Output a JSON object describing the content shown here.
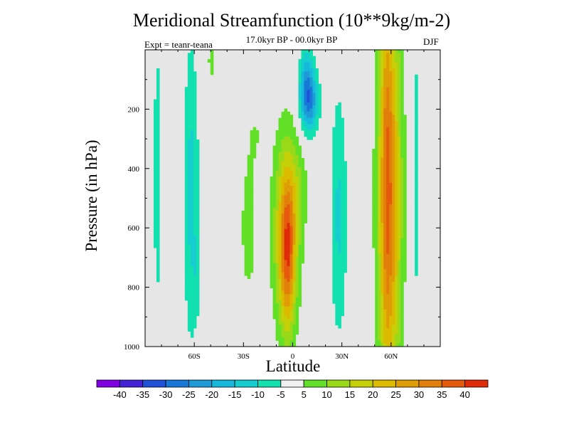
{
  "chart_data": {
    "type": "heatmap",
    "title": "Meridional Streamfunction (10**9kg/m-2)",
    "subtitle": "17.0kyr BP - 00.0kyr BP",
    "left_label": "Expt = teanr-teana",
    "right_label": "DJF",
    "xlabel": "Latitude",
    "ylabel": "Pressure (in hPa)",
    "xlim": [
      -90,
      90
    ],
    "ylim": [
      0,
      1000
    ],
    "y_reversed": true,
    "x_ticks": [
      {
        "value": -60,
        "label": "60S"
      },
      {
        "value": -30,
        "label": "30S"
      },
      {
        "value": 0,
        "label": "0"
      },
      {
        "value": 30,
        "label": "30N"
      },
      {
        "value": 60,
        "label": "60N"
      }
    ],
    "y_ticks": [
      {
        "value": 200,
        "label": "200"
      },
      {
        "value": 400,
        "label": "400"
      },
      {
        "value": 600,
        "label": "600"
      },
      {
        "value": 800,
        "label": "800"
      },
      {
        "value": 1000,
        "label": "1000"
      }
    ],
    "background": "#e6e6e6",
    "colorbar": {
      "levels": [
        "-40",
        "-35",
        "-30",
        "-25",
        "-20",
        "-15",
        "-10",
        "-5",
        "5",
        "10",
        "15",
        "20",
        "25",
        "30",
        "35",
        "40"
      ],
      "colors": [
        "#7f00e0",
        "#4422d6",
        "#1e52d8",
        "#1878d8",
        "#1e9ad6",
        "#17b8dc",
        "#16cdd0",
        "#12e0ae",
        "#f0f0f0",
        "#62e028",
        "#9ad81a",
        "#c6d008",
        "#dcba00",
        "#e09c06",
        "#e27e0a",
        "#e55a0c",
        "#de2c08"
      ]
    },
    "features": [
      {
        "name": "negative cell near 75S",
        "lat_range": [
          -86,
          -80
        ],
        "p_range": [
          0,
          830
        ],
        "level": "-10"
      },
      {
        "name": "negative cell near 60S",
        "lat_range": [
          -70,
          -55
        ],
        "p_range": [
          0,
          960
        ],
        "level": "-15"
      },
      {
        "name": "positive cell near 50S",
        "lat_range": [
          -53,
          -46
        ],
        "p_range": [
          0,
          90
        ],
        "level": "10"
      },
      {
        "name": "positive cell south of equator",
        "lat_range": [
          -40,
          -10
        ],
        "p_range": [
          200,
          960
        ],
        "level": "5"
      },
      {
        "name": "strong positive cell at equator",
        "lat_range": [
          -10,
          20
        ],
        "p_range": [
          250,
          980
        ],
        "max": 40
      },
      {
        "name": "negative cell upper tropics",
        "lat_range": [
          0,
          20
        ],
        "p_range": [
          0,
          290
        ],
        "level": "-30"
      },
      {
        "name": "negative cell near 30N",
        "lat_range": [
          20,
          38
        ],
        "p_range": [
          160,
          980
        ],
        "level": "-10"
      },
      {
        "name": "strong positive cell near 55N",
        "lat_range": [
          45,
          73
        ],
        "p_range": [
          0,
          980
        ],
        "max": 35
      },
      {
        "name": "negative cell near 75N",
        "lat_range": [
          73,
          78
        ],
        "p_range": [
          0,
          880
        ],
        "level": "-10"
      }
    ]
  }
}
